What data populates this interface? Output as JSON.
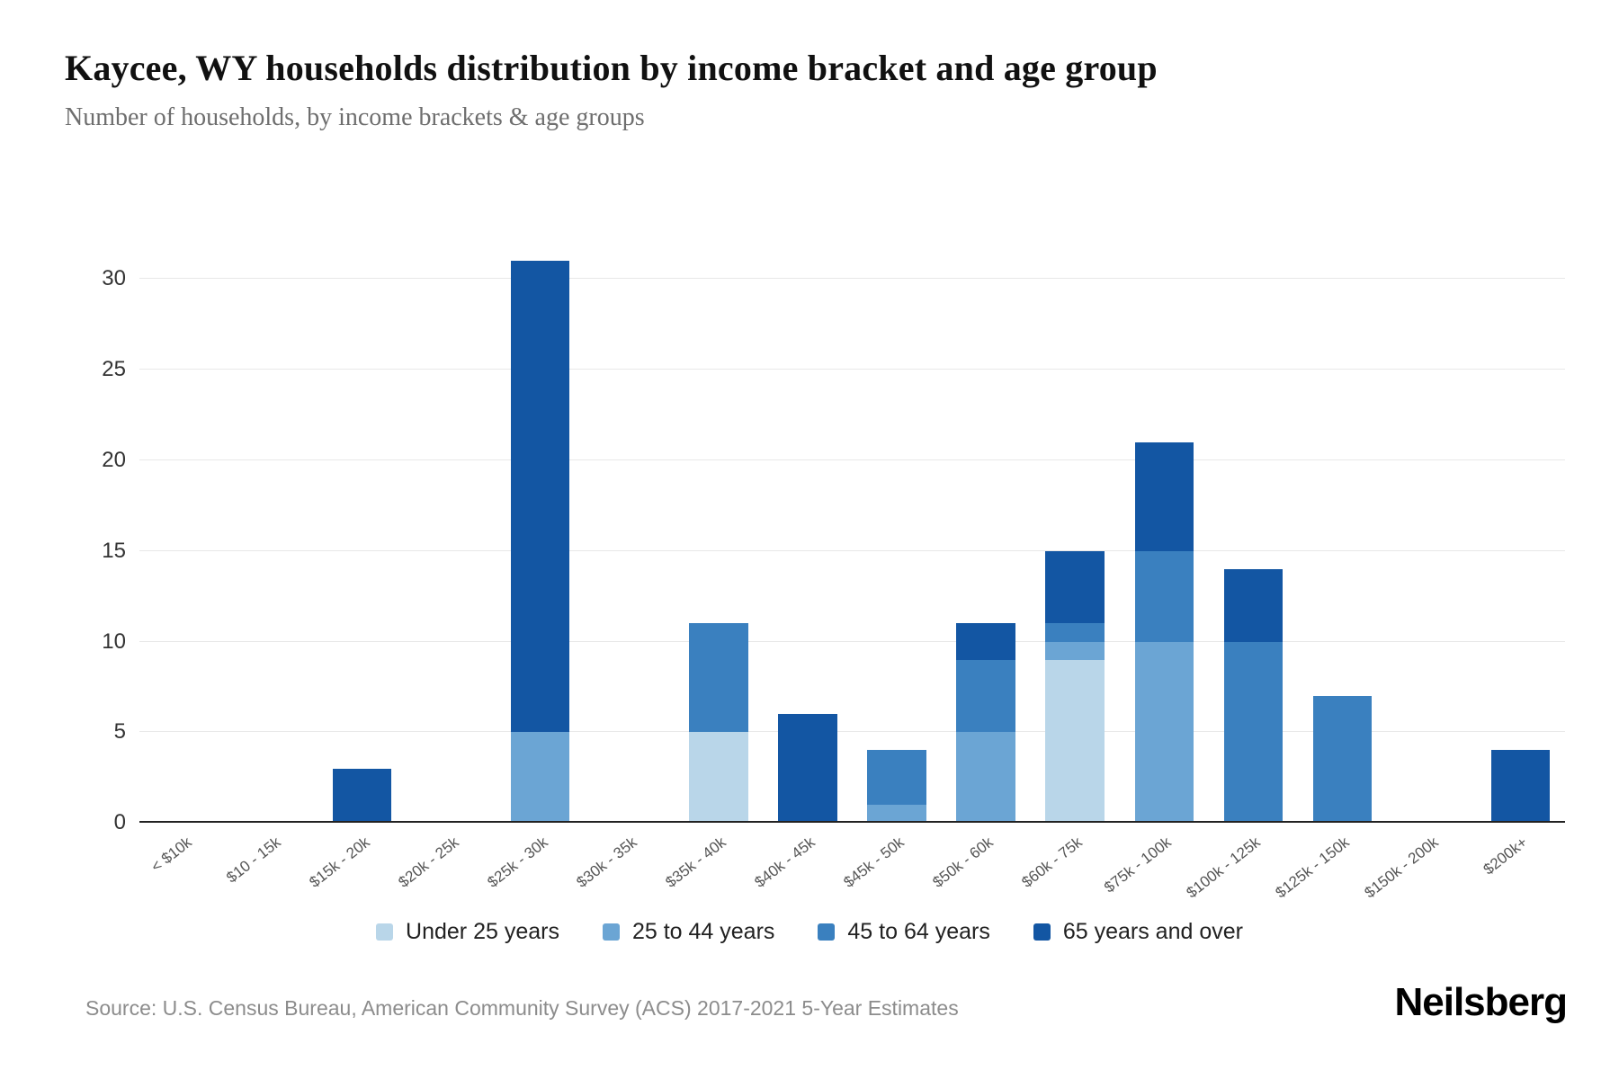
{
  "title": "Kaycee, WY households distribution by income bracket and age group",
  "subtitle": "Number of households, by income brackets & age groups",
  "source": "Source: U.S. Census Bureau, American Community Survey (ACS) 2017-2021 5-Year Estimates",
  "brand": "Neilsberg",
  "chart_data": {
    "type": "bar",
    "stacked": true,
    "title": "Kaycee, WY households distribution by income bracket and age group",
    "subtitle": "Number of households, by income brackets & age groups",
    "xlabel": "",
    "ylabel": "Number of households",
    "grid": true,
    "legend_position": "bottom",
    "yticks": [
      0,
      5,
      10,
      15,
      20,
      25,
      30
    ],
    "ylim": [
      0,
      33
    ],
    "categories": [
      "< $10k",
      "$10 - 15k",
      "$15k - 20k",
      "$20k - 25k",
      "$25k - 30k",
      "$30k - 35k",
      "$35k - 40k",
      "$40k - 45k",
      "$45k - 50k",
      "$50k - 60k",
      "$60k - 75k",
      "$75k - 100k",
      "$100k - 125k",
      "$125k - 150k",
      "$150k - 200k",
      "$200k+"
    ],
    "series": [
      {
        "name": "Under 25 years",
        "color": "#b9d6e9",
        "values": [
          0,
          0,
          0,
          0,
          0,
          0,
          5,
          0,
          0,
          0,
          9,
          0,
          0,
          0,
          0,
          0
        ]
      },
      {
        "name": "25 to 44 years",
        "color": "#6ba5d4",
        "values": [
          0,
          0,
          0,
          0,
          5,
          0,
          0,
          0,
          1,
          5,
          1,
          10,
          0,
          0,
          0,
          0
        ]
      },
      {
        "name": "45 to 64 years",
        "color": "#3a80bf",
        "values": [
          0,
          0,
          0,
          0,
          0,
          0,
          6,
          0,
          3,
          4,
          1,
          5,
          10,
          7,
          0,
          0
        ]
      },
      {
        "name": "65 years and over",
        "color": "#1356a3",
        "values": [
          0,
          0,
          3,
          0,
          26,
          0,
          0,
          6,
          0,
          2,
          4,
          6,
          4,
          0,
          0,
          4
        ]
      }
    ],
    "totals": [
      0,
      0,
      3,
      0,
      31,
      0,
      11,
      6,
      4,
      11,
      15,
      21,
      14,
      7,
      0,
      4
    ]
  }
}
